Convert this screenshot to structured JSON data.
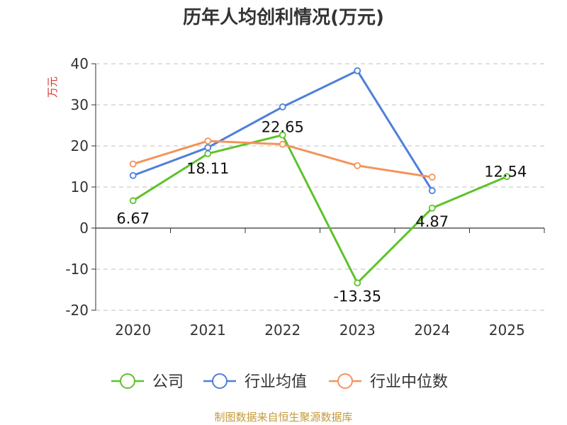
{
  "chart_data": {
    "type": "line",
    "title": "历年人均创利情况(万元)",
    "ylabel": "万元",
    "xlabel": "",
    "categories": [
      "2020",
      "2021",
      "2022",
      "2023",
      "2024",
      "2025"
    ],
    "ylim": [
      -20,
      40
    ],
    "yticks": [
      "-20",
      "-10",
      "0",
      "10",
      "20",
      "30",
      "40"
    ],
    "grid": true,
    "legend_position": "bottom",
    "series": [
      {
        "name": "公司",
        "color": "#5ec22c",
        "values": [
          6.67,
          18.11,
          22.65,
          -13.35,
          4.87,
          12.54
        ],
        "labels": [
          "6.67",
          "18.11",
          "22.65",
          "-13.35",
          "4.87",
          "12.54"
        ]
      },
      {
        "name": "行业均值",
        "color": "#4f7fd9",
        "values": [
          12.8,
          19.6,
          29.5,
          38.3,
          9.1,
          null
        ]
      },
      {
        "name": "行业中位数",
        "color": "#f5935a",
        "values": [
          15.6,
          21.2,
          20.4,
          15.2,
          12.4,
          null
        ]
      }
    ]
  },
  "source": "制图数据来自恒生聚源数据库"
}
